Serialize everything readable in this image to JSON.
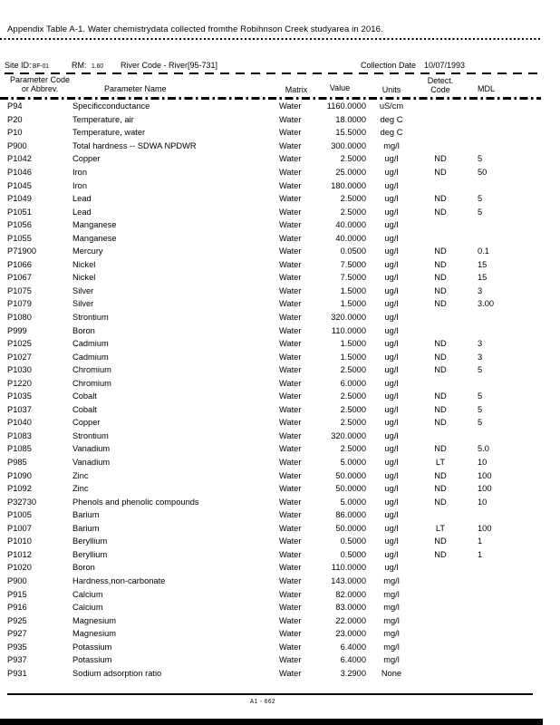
{
  "page": {
    "title": "Appendix Table A-1. Water chemistrydata collected fromthe Robihnson Creek studyarea in 2016.",
    "footer_page_number": "A1 - 662"
  },
  "site_info": {
    "site_id_label": "Site ID:",
    "site_id_value": "BF-01",
    "rm_label": "RM:",
    "rm_value": "1.60",
    "river_code": "River Code - River[95-731]",
    "collection_date_label": "Collection Date",
    "collection_date_value": "10/07/1993"
  },
  "table": {
    "headers": {
      "code_line1": "Parameter Code",
      "code_line2": "or Abbrev.",
      "name": "Parameter Name",
      "matrix": "Matrix",
      "value": "Value",
      "units": "Units",
      "detect_line1": "Detect.",
      "detect_line2": "Code",
      "mdl": "MDL"
    },
    "rows": [
      {
        "code": "P94",
        "name": "Specificconductance",
        "matrix": "Water",
        "value": "1160.0000",
        "units": "uS/cm",
        "detect": "",
        "mdl": ""
      },
      {
        "code": "P20",
        "name": "Temperature, air",
        "matrix": "Water",
        "value": "18.0000",
        "units": "deg C",
        "detect": "",
        "mdl": ""
      },
      {
        "code": "P10",
        "name": "Temperature, water",
        "matrix": "Water",
        "value": "15.5000",
        "units": "deg C",
        "detect": "",
        "mdl": ""
      },
      {
        "code": "P900",
        "name": "Total hardness -- SDWA NPDWR",
        "matrix": "Water",
        "value": "300.0000",
        "units": "mg/l",
        "detect": "",
        "mdl": ""
      },
      {
        "code": "P1042",
        "name": "Copper",
        "matrix": "Water",
        "value": "2.5000",
        "units": "ug/l",
        "detect": "ND",
        "mdl": "5"
      },
      {
        "code": "P1046",
        "name": "Iron",
        "matrix": "Water",
        "value": "25.0000",
        "units": "ug/l",
        "detect": "ND",
        "mdl": "50"
      },
      {
        "code": "P1045",
        "name": "Iron",
        "matrix": "Water",
        "value": "180.0000",
        "units": "ug/l",
        "detect": "",
        "mdl": ""
      },
      {
        "code": "P1049",
        "name": "Lead",
        "matrix": "Water",
        "value": "2.5000",
        "units": "ug/l",
        "detect": "ND",
        "mdl": "5"
      },
      {
        "code": "P1051",
        "name": "Lead",
        "matrix": "Water",
        "value": "2.5000",
        "units": "ug/l",
        "detect": "ND",
        "mdl": "5"
      },
      {
        "code": "P1056",
        "name": "Manganese",
        "matrix": "Water",
        "value": "40.0000",
        "units": "ug/l",
        "detect": "",
        "mdl": ""
      },
      {
        "code": "P1055",
        "name": "Manganese",
        "matrix": "Water",
        "value": "40.0000",
        "units": "ug/l",
        "detect": "",
        "mdl": ""
      },
      {
        "code": "P71900",
        "name": "Mercury",
        "matrix": "Water",
        "value": "0.0500",
        "units": "ug/l",
        "detect": "ND",
        "mdl": "0.1"
      },
      {
        "code": "P1066",
        "name": "Nickel",
        "matrix": "Water",
        "value": "7.5000",
        "units": "ug/l",
        "detect": "ND",
        "mdl": "15"
      },
      {
        "code": "P1067",
        "name": "Nickel",
        "matrix": "Water",
        "value": "7.5000",
        "units": "ug/l",
        "detect": "ND",
        "mdl": "15"
      },
      {
        "code": "P1075",
        "name": "Silver",
        "matrix": "Water",
        "value": "1.5000",
        "units": "ug/l",
        "detect": "ND",
        "mdl": "3"
      },
      {
        "code": "P1079",
        "name": "Silver",
        "matrix": "Water",
        "value": "1.5000",
        "units": "ug/l",
        "detect": "ND",
        "mdl": "3.00"
      },
      {
        "code": "P1080",
        "name": "Strontium",
        "matrix": "Water",
        "value": "320.0000",
        "units": "ug/l",
        "detect": "",
        "mdl": ""
      },
      {
        "code": "P999",
        "name": "Boron",
        "matrix": "Water",
        "value": "110.0000",
        "units": "ug/l",
        "detect": "",
        "mdl": ""
      },
      {
        "code": "P1025",
        "name": "Cadmium",
        "matrix": "Water",
        "value": "1.5000",
        "units": "ug/l",
        "detect": "ND",
        "mdl": "3"
      },
      {
        "code": "P1027",
        "name": "Cadmium",
        "matrix": "Water",
        "value": "1.5000",
        "units": "ug/l",
        "detect": "ND",
        "mdl": "3"
      },
      {
        "code": "P1030",
        "name": "Chromium",
        "matrix": "Water",
        "value": "2.5000",
        "units": "ug/l",
        "detect": "ND",
        "mdl": "5"
      },
      {
        "code": "P1220",
        "name": "Chromium",
        "matrix": "Water",
        "value": "6.0000",
        "units": "ug/l",
        "detect": "",
        "mdl": ""
      },
      {
        "code": "P1035",
        "name": "Cobalt",
        "matrix": "Water",
        "value": "2.5000",
        "units": "ug/l",
        "detect": "ND",
        "mdl": "5"
      },
      {
        "code": "P1037",
        "name": "Cobalt",
        "matrix": "Water",
        "value": "2.5000",
        "units": "ug/l",
        "detect": "ND",
        "mdl": "5"
      },
      {
        "code": "P1040",
        "name": "Copper",
        "matrix": "Water",
        "value": "2.5000",
        "units": "ug/l",
        "detect": "ND",
        "mdl": "5"
      },
      {
        "code": "P1083",
        "name": "Strontium",
        "matrix": "Water",
        "value": "320.0000",
        "units": "ug/l",
        "detect": "",
        "mdl": ""
      },
      {
        "code": "P1085",
        "name": "Vanadium",
        "matrix": "Water",
        "value": "2.5000",
        "units": "ug/l",
        "detect": "ND",
        "mdl": "5.0"
      },
      {
        "code": "P985",
        "name": "Vanadium",
        "matrix": "Water",
        "value": "5.0000",
        "units": "ug/l",
        "detect": "LT",
        "mdl": "10"
      },
      {
        "code": "P1090",
        "name": "Zinc",
        "matrix": "Water",
        "value": "50.0000",
        "units": "ug/l",
        "detect": "ND",
        "mdl": "100"
      },
      {
        "code": "P1092",
        "name": "Zinc",
        "matrix": "Water",
        "value": "50.0000",
        "units": "ug/l",
        "detect": "ND",
        "mdl": "100"
      },
      {
        "code": "P32730",
        "name": "Phenols and phenolic compounds",
        "matrix": "Water",
        "value": "5.0000",
        "units": "ug/l",
        "detect": "ND",
        "mdl": "10"
      },
      {
        "code": "P1005",
        "name": "Barium",
        "matrix": "Water",
        "value": "86.0000",
        "units": "ug/l",
        "detect": "",
        "mdl": ""
      },
      {
        "code": "P1007",
        "name": "Barium",
        "matrix": "Water",
        "value": "50.0000",
        "units": "ug/l",
        "detect": "LT",
        "mdl": "100"
      },
      {
        "code": "P1010",
        "name": "Beryllium",
        "matrix": "Water",
        "value": "0.5000",
        "units": "ug/l",
        "detect": "ND",
        "mdl": "1"
      },
      {
        "code": "P1012",
        "name": "Beryllium",
        "matrix": "Water",
        "value": "0.5000",
        "units": "ug/l",
        "detect": "ND",
        "mdl": "1"
      },
      {
        "code": "P1020",
        "name": "Boron",
        "matrix": "Water",
        "value": "110.0000",
        "units": "ug/l",
        "detect": "",
        "mdl": ""
      },
      {
        "code": "P900",
        "name": "Hardness,non-carbonate",
        "matrix": "Water",
        "value": "143.0000",
        "units": "mg/l",
        "detect": "",
        "mdl": ""
      },
      {
        "code": "P915",
        "name": "Calcium",
        "matrix": "Water",
        "value": "82.0000",
        "units": "mg/l",
        "detect": "",
        "mdl": ""
      },
      {
        "code": "P916",
        "name": "Calcium",
        "matrix": "Water",
        "value": "83.0000",
        "units": "mg/l",
        "detect": "",
        "mdl": ""
      },
      {
        "code": "P925",
        "name": "Magnesium",
        "matrix": "Water",
        "value": "22.0000",
        "units": "mg/l",
        "detect": "",
        "mdl": ""
      },
      {
        "code": "P927",
        "name": "Magnesium",
        "matrix": "Water",
        "value": "23.0000",
        "units": "mg/l",
        "detect": "",
        "mdl": ""
      },
      {
        "code": "P935",
        "name": "Potassium",
        "matrix": "Water",
        "value": "6.4000",
        "units": "mg/l",
        "detect": "",
        "mdl": ""
      },
      {
        "code": "P937",
        "name": "Potassium",
        "matrix": "Water",
        "value": "6.4000",
        "units": "mg/l",
        "detect": "",
        "mdl": ""
      },
      {
        "code": "P931",
        "name": "Sodium adsorption ratio",
        "matrix": "Water",
        "value": "3.2900",
        "units": "None",
        "detect": "",
        "mdl": ""
      }
    ]
  }
}
